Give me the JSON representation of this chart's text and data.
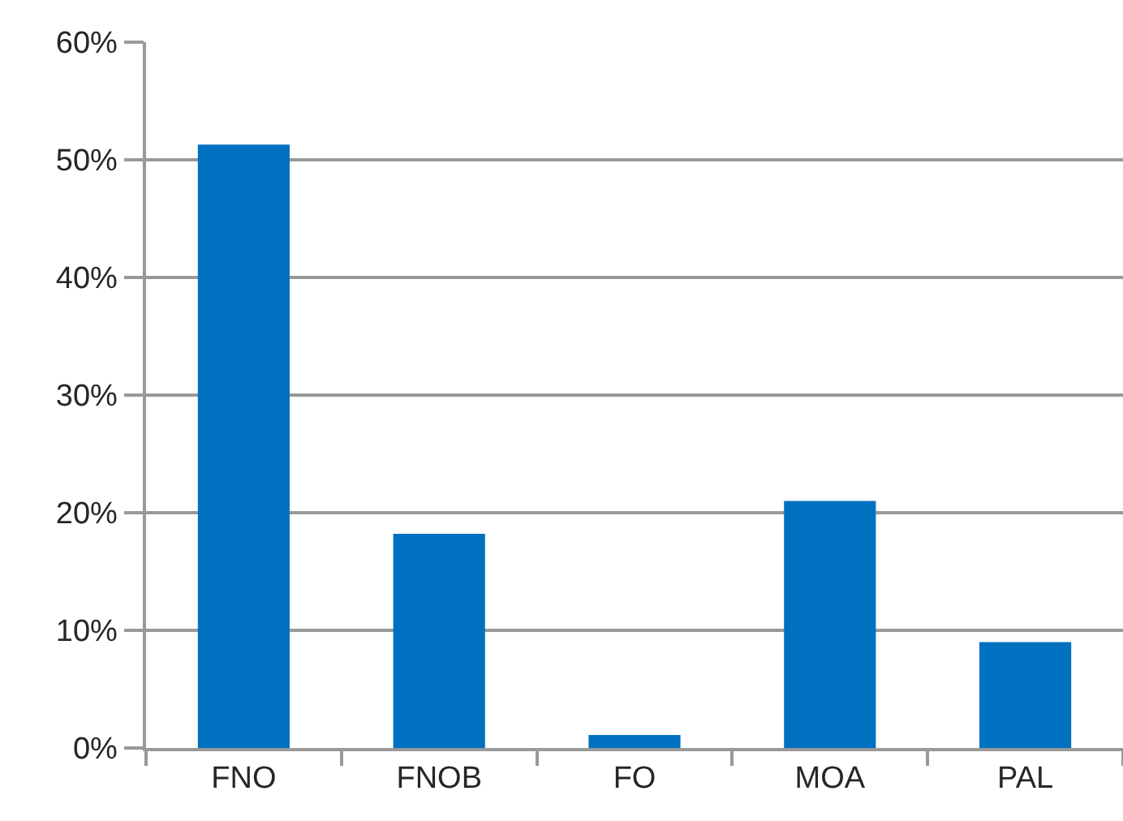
{
  "chart_data": {
    "type": "bar",
    "categories": [
      "FNO",
      "FNOB",
      "FO",
      "MOA",
      "PAL"
    ],
    "values": [
      51.3,
      18.2,
      1.1,
      21.0,
      9.0
    ],
    "color": "#0070c0",
    "ylim": [
      0,
      60
    ],
    "yticks": [
      {
        "value": 0,
        "label": "0%"
      },
      {
        "value": 10,
        "label": "10%"
      },
      {
        "value": 20,
        "label": "20%"
      },
      {
        "value": 30,
        "label": "30%"
      },
      {
        "value": 40,
        "label": "40%"
      },
      {
        "value": 50,
        "label": "50%"
      },
      {
        "value": 60,
        "label": "60%"
      }
    ],
    "grid": "y"
  }
}
